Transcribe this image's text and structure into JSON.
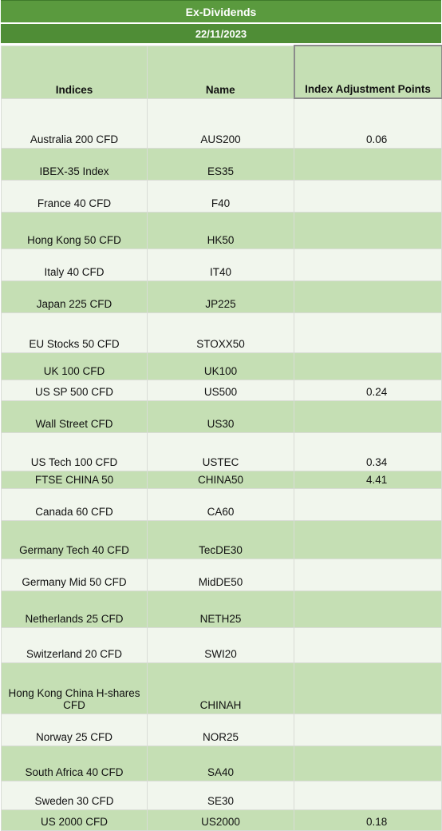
{
  "title": "Ex-Dividends",
  "date": "22/11/2023",
  "headers": [
    "Indices",
    "Name",
    "Index Adjustment Points"
  ],
  "rows": [
    {
      "index": "Australia 200 CFD",
      "name": "AUS200",
      "points": "0.06"
    },
    {
      "index": "IBEX-35 Index",
      "name": "ES35",
      "points": ""
    },
    {
      "index": "France 40 CFD",
      "name": "F40",
      "points": ""
    },
    {
      "index": "Hong Kong 50 CFD",
      "name": "HK50",
      "points": ""
    },
    {
      "index": "Italy 40 CFD",
      "name": "IT40",
      "points": ""
    },
    {
      "index": "Japan 225 CFD",
      "name": "JP225",
      "points": ""
    },
    {
      "index": "EU Stocks 50 CFD",
      "name": "STOXX50",
      "points": ""
    },
    {
      "index": "UK 100 CFD",
      "name": "UK100",
      "points": ""
    },
    {
      "index": "US SP 500 CFD",
      "name": "US500",
      "points": "0.24"
    },
    {
      "index": "Wall Street CFD",
      "name": "US30",
      "points": ""
    },
    {
      "index": "US Tech 100 CFD",
      "name": "USTEC",
      "points": "0.34"
    },
    {
      "index": "FTSE CHINA 50",
      "name": "CHINA50",
      "points": "4.41"
    },
    {
      "index": "Canada 60 CFD",
      "name": "CA60",
      "points": ""
    },
    {
      "index": "Germany Tech 40 CFD",
      "name": "TecDE30",
      "points": ""
    },
    {
      "index": "Germany Mid 50 CFD",
      "name": "MidDE50",
      "points": ""
    },
    {
      "index": "Netherlands 25 CFD",
      "name": "NETH25",
      "points": ""
    },
    {
      "index": "Switzerland 20 CFD",
      "name": "SWI20",
      "points": ""
    },
    {
      "index": "Hong Kong China H-shares CFD",
      "name": "CHINAH",
      "points": ""
    },
    {
      "index": "Norway 25 CFD",
      "name": "NOR25",
      "points": ""
    },
    {
      "index": "South Africa 40 CFD",
      "name": "SA40",
      "points": ""
    },
    {
      "index": "Sweden 30 CFD",
      "name": "SE30",
      "points": ""
    },
    {
      "index": "US 2000 CFD",
      "name": "US2000",
      "points": "0.18"
    }
  ]
}
